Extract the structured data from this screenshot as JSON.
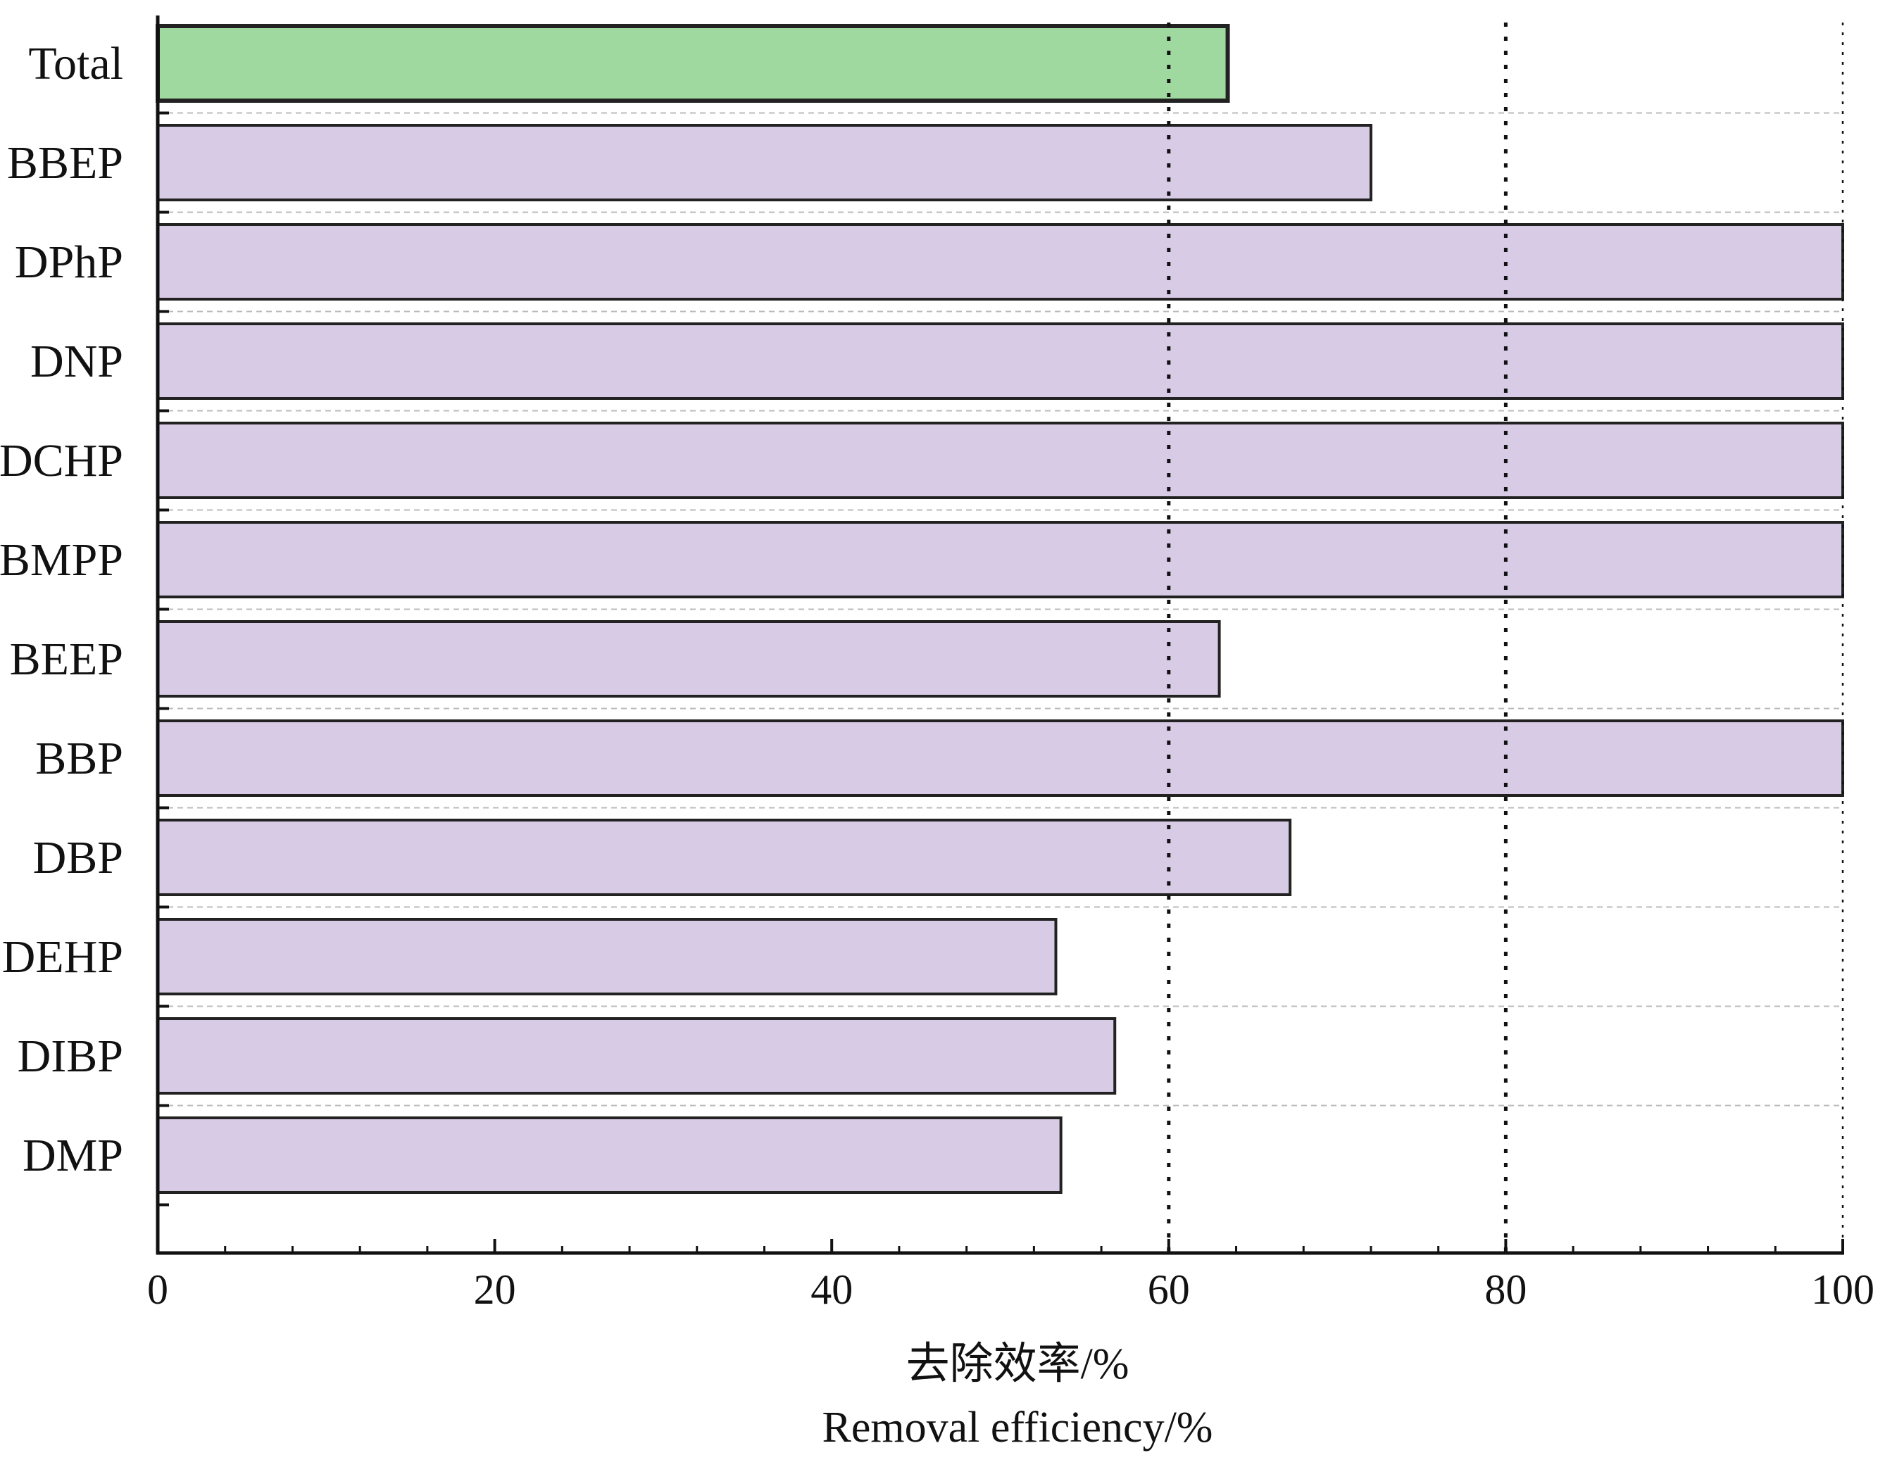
{
  "chart_data": {
    "type": "bar",
    "orientation": "horizontal",
    "categories": [
      "Total",
      "BBEP",
      "DPhP",
      "DNP",
      "DCHP",
      "BMPP",
      "BEEP",
      "BBP",
      "DBP",
      "DEHP",
      "DIBP",
      "DMP"
    ],
    "values": [
      63.5,
      72.0,
      100,
      100,
      100,
      100,
      63.0,
      100,
      67.2,
      53.3,
      56.8,
      53.6
    ],
    "highlight_category": "Total",
    "xlabel": "去除效率/%",
    "xlabel_en": "Removal efficiency/%",
    "ylabel": "",
    "title": "",
    "xlim": [
      0,
      100
    ],
    "xticks": [
      0,
      20,
      40,
      60,
      80,
      100
    ],
    "reference_lines": [
      60,
      80,
      100
    ],
    "grid": "horizontal dashed separators",
    "legend": "none",
    "colors": {
      "highlight_bar": "#9fd9a0",
      "bar": "#d8cbe6",
      "bar_edge": "#222222",
      "separator": "#bbbbbb",
      "axis": "#111111"
    }
  }
}
